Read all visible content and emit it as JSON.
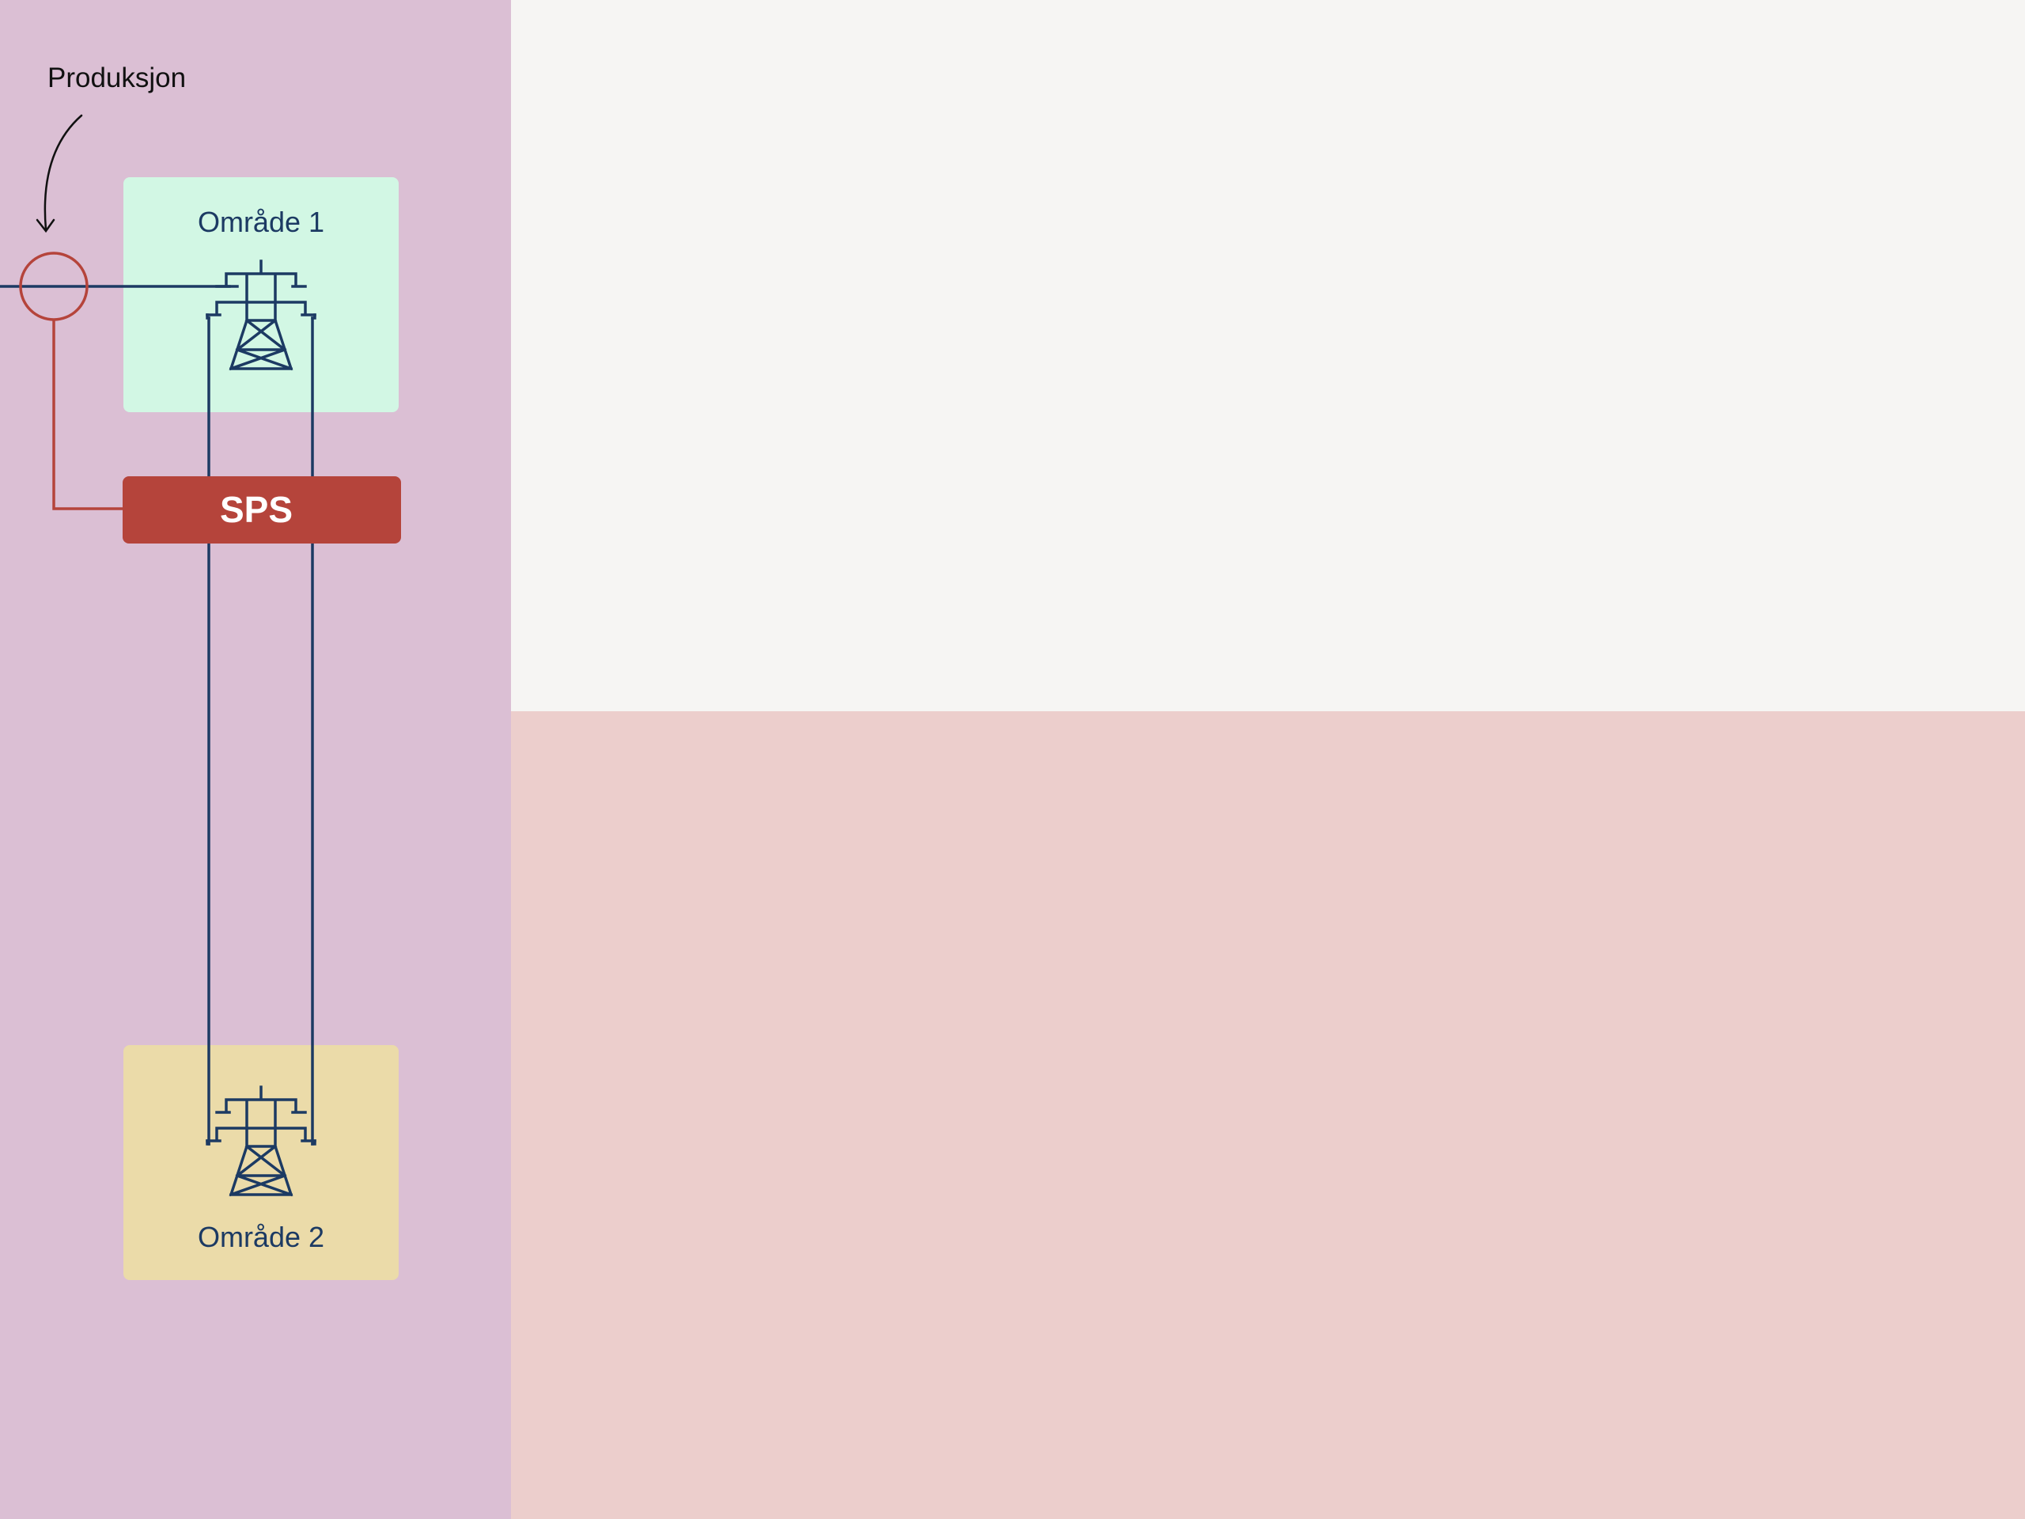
{
  "colors": {
    "left_panel": "#dbbfd4",
    "top_right_panel": "#f6f5f3",
    "bottom_right_panel": "#eccecc",
    "area1_fill": "#d2f7e4",
    "area2_fill": "#ebdba9",
    "sps_fill": "#b5443b",
    "line_navy": "#1c3a63",
    "line_red": "#b5443b",
    "text_dark": "#111111",
    "text_white": "#ffffff"
  },
  "diagram": {
    "production_label": "Produksjon",
    "area1": {
      "label": "Område 1"
    },
    "area2": {
      "label": "Område 2"
    },
    "sps": {
      "label": "SPS"
    },
    "icons": [
      "transmission-tower-icon",
      "transmission-tower-icon",
      "curved-arrow-icon",
      "measurement-circle-icon"
    ]
  }
}
